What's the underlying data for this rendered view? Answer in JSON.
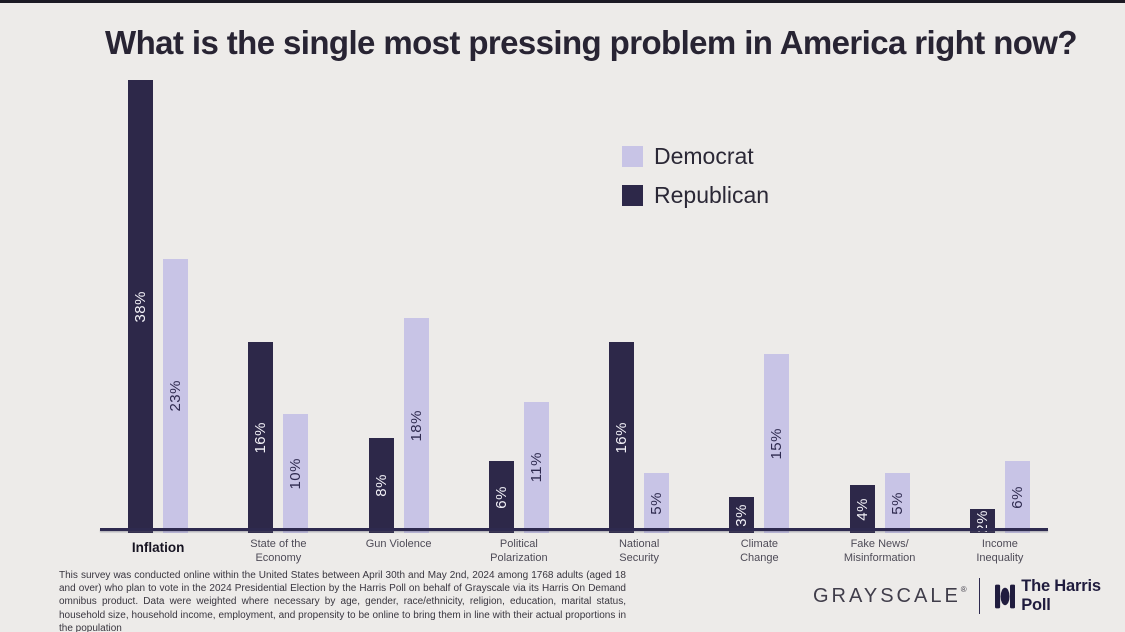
{
  "chart_data": {
    "type": "bar",
    "title": "What is the single most pressing problem in America right now?",
    "categories": [
      {
        "label": "Inflation",
        "lines": [
          "Inflation"
        ],
        "emphasized": true
      },
      {
        "label": "State of the Economy",
        "lines": [
          "State of the",
          "Economy"
        ],
        "emphasized": false
      },
      {
        "label": "Gun Violence",
        "lines": [
          "Gun Violence"
        ],
        "emphasized": false
      },
      {
        "label": "Political Polarization",
        "lines": [
          "Political",
          "Polarization"
        ],
        "emphasized": false
      },
      {
        "label": "National Security",
        "lines": [
          "National",
          "Security"
        ],
        "emphasized": false
      },
      {
        "label": "Climate Change",
        "lines": [
          "Climate",
          "Change"
        ],
        "emphasized": false
      },
      {
        "label": "Fake News/Misinformation",
        "lines": [
          "Fake News/",
          "Misinformation"
        ],
        "emphasized": false
      },
      {
        "label": "Income Inequality",
        "lines": [
          "Income",
          "Inequality"
        ],
        "emphasized": false
      }
    ],
    "series": [
      {
        "name": "Democrat",
        "color": "#c8c4e6",
        "values": [
          23,
          10,
          18,
          11,
          5,
          15,
          5,
          6
        ]
      },
      {
        "name": "Republican",
        "color": "#2d2849",
        "values": [
          38,
          16,
          8,
          6,
          16,
          3,
          4,
          2
        ]
      }
    ],
    "value_suffix": "%",
    "ylim": [
      0,
      40
    ],
    "grid": false,
    "legend_position": "upper-right",
    "bar_labels": "inside-rotated-vertical",
    "group_order": [
      "Republican",
      "Democrat"
    ]
  },
  "colors": {
    "background": "#edebe9",
    "axis_line": "#2e2a4f",
    "label_on_dark": "#f3f2f8",
    "label_on_light": "#2e2a4f"
  },
  "footnote": {
    "text": "This survey was conducted online within the United States between April 30th and May 2nd, 2024 among 1768 adults (aged 18 and over) who plan to vote in the 2024 Presidential Election by the Harris Poll on behalf of Grayscale via its Harris On Demand omnibus product. Data were weighted where necessary by age, gender, race/ethnicity, religion, education, marital status, household size, household income, employment, and propensity to be online to bring them in line with their actual proportions in the population"
  },
  "branding": {
    "grayscale_wordmark": "GRAYSCALE",
    "registered_mark": "®",
    "harris_poll_wordmark": "The Harris Poll"
  }
}
